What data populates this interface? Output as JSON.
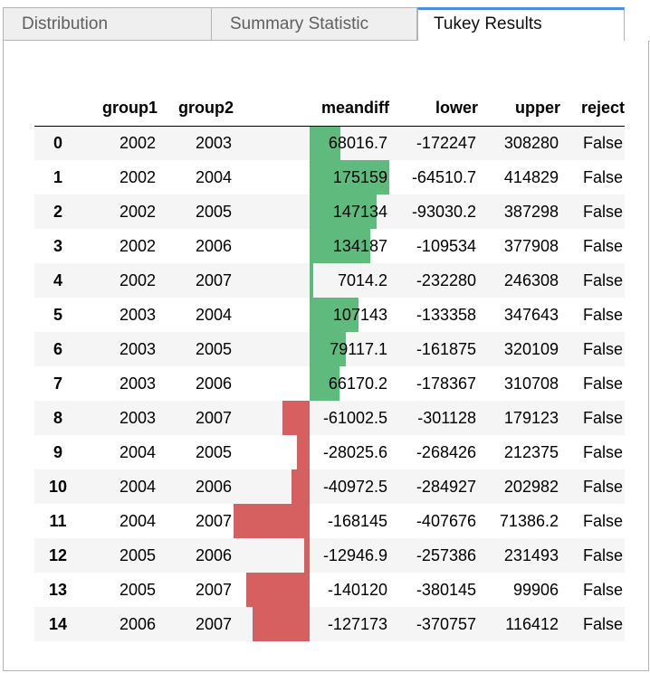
{
  "tabs": [
    {
      "label": "Distribution",
      "active": false
    },
    {
      "label": "Summary Statistic",
      "active": false
    },
    {
      "label": "Tukey Results",
      "active": true
    }
  ],
  "table": {
    "columns": [
      "",
      "group1",
      "group2",
      "meandiff",
      "lower",
      "upper",
      "reject"
    ],
    "bar_colors": {
      "positive": "#5fba7d",
      "negative": "#d65f5f"
    },
    "meandiff_scale": {
      "min": -168145,
      "max": 175159
    },
    "rows": [
      {
        "index": "0",
        "group1": "2002",
        "group2": "2003",
        "meandiff": "68016.7",
        "meandiff_value": 68016.7,
        "lower": "-172247",
        "upper": "308280",
        "reject": "False"
      },
      {
        "index": "1",
        "group1": "2002",
        "group2": "2004",
        "meandiff": "175159",
        "meandiff_value": 175159,
        "lower": "-64510.7",
        "upper": "414829",
        "reject": "False"
      },
      {
        "index": "2",
        "group1": "2002",
        "group2": "2005",
        "meandiff": "147134",
        "meandiff_value": 147134,
        "lower": "-93030.2",
        "upper": "387298",
        "reject": "False"
      },
      {
        "index": "3",
        "group1": "2002",
        "group2": "2006",
        "meandiff": "134187",
        "meandiff_value": 134187,
        "lower": "-109534",
        "upper": "377908",
        "reject": "False"
      },
      {
        "index": "4",
        "group1": "2002",
        "group2": "2007",
        "meandiff": "7014.2",
        "meandiff_value": 7014.2,
        "lower": "-232280",
        "upper": "246308",
        "reject": "False"
      },
      {
        "index": "5",
        "group1": "2003",
        "group2": "2004",
        "meandiff": "107143",
        "meandiff_value": 107143,
        "lower": "-133358",
        "upper": "347643",
        "reject": "False"
      },
      {
        "index": "6",
        "group1": "2003",
        "group2": "2005",
        "meandiff": "79117.1",
        "meandiff_value": 79117.1,
        "lower": "-161875",
        "upper": "320109",
        "reject": "False"
      },
      {
        "index": "7",
        "group1": "2003",
        "group2": "2006",
        "meandiff": "66170.2",
        "meandiff_value": 66170.2,
        "lower": "-178367",
        "upper": "310708",
        "reject": "False"
      },
      {
        "index": "8",
        "group1": "2003",
        "group2": "2007",
        "meandiff": "-61002.5",
        "meandiff_value": -61002.5,
        "lower": "-301128",
        "upper": "179123",
        "reject": "False"
      },
      {
        "index": "9",
        "group1": "2004",
        "group2": "2005",
        "meandiff": "-28025.6",
        "meandiff_value": -28025.6,
        "lower": "-268426",
        "upper": "212375",
        "reject": "False"
      },
      {
        "index": "10",
        "group1": "2004",
        "group2": "2006",
        "meandiff": "-40972.5",
        "meandiff_value": -40972.5,
        "lower": "-284927",
        "upper": "202982",
        "reject": "False"
      },
      {
        "index": "11",
        "group1": "2004",
        "group2": "2007",
        "meandiff": "-168145",
        "meandiff_value": -168145,
        "lower": "-407676",
        "upper": "71386.2",
        "reject": "False"
      },
      {
        "index": "12",
        "group1": "2005",
        "group2": "2006",
        "meandiff": "-12946.9",
        "meandiff_value": -12946.9,
        "lower": "-257386",
        "upper": "231493",
        "reject": "False"
      },
      {
        "index": "13",
        "group1": "2005",
        "group2": "2007",
        "meandiff": "-140120",
        "meandiff_value": -140120,
        "lower": "-380145",
        "upper": "99906",
        "reject": "False"
      },
      {
        "index": "14",
        "group1": "2006",
        "group2": "2007",
        "meandiff": "-127173",
        "meandiff_value": -127173,
        "lower": "-370757",
        "upper": "116412",
        "reject": "False"
      }
    ]
  }
}
